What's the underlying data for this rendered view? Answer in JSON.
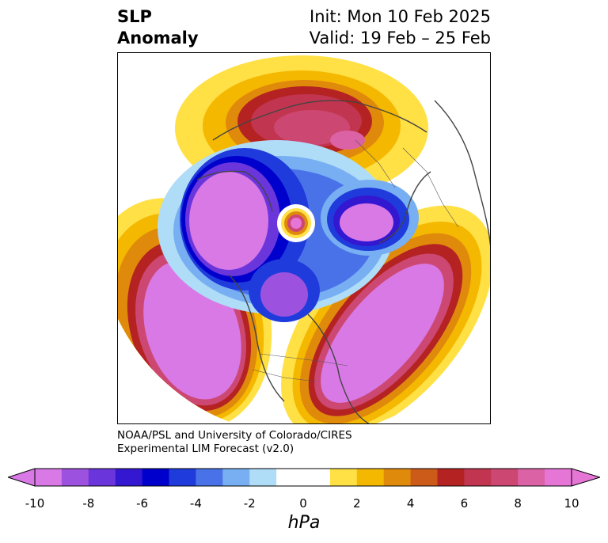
{
  "title": {
    "line1": "SLP",
    "line2": "Anomaly",
    "init": "Init: Mon 10 Feb 2025",
    "valid": "Valid: 19 Feb – 25 Feb"
  },
  "credit": {
    "line1": "NOAA/PSL and University of Colorado/CIRES",
    "line2": "Experimental LIM Forecast (v2.0)"
  },
  "colorbar": {
    "units": "hPa",
    "ticks": [
      "-10",
      "-8",
      "-6",
      "-4",
      "-2",
      "0",
      "2",
      "4",
      "6",
      "8",
      "10"
    ],
    "colors": [
      "#d879e6",
      "#9c52de",
      "#6b35dc",
      "#3317d1",
      "#0000cd",
      "#1f3bdc",
      "#4a72e8",
      "#77aff2",
      "#afdcf7",
      "#ffffff",
      "#ffffff",
      "#ffe045",
      "#f5b800",
      "#e08a0c",
      "#cc5a18",
      "#b52222",
      "#c23550",
      "#cc4872",
      "#dc62a6",
      "#e676d6"
    ]
  },
  "map": {
    "projection": "north-polar-stereographic",
    "field": "sea-level-pressure-anomaly"
  }
}
